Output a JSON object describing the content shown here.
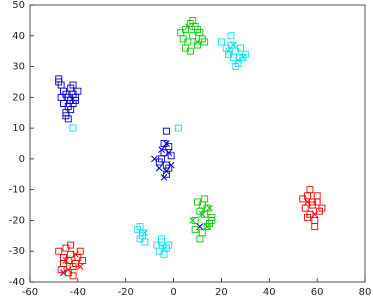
{
  "chart_data": {
    "type": "scatter",
    "xlim": [
      -60,
      80
    ],
    "xticks": [
      -60,
      -40,
      -20,
      0,
      20,
      40,
      60,
      80
    ],
    "ylim": [
      -40,
      50
    ],
    "yticks": [
      -40,
      -30,
      -20,
      -10,
      0,
      10,
      20,
      30,
      40,
      50
    ],
    "grid": false,
    "series": [
      {
        "color": "#0000cc",
        "marker": "square",
        "x": [
          -48,
          -47,
          -46,
          -45,
          -44,
          -43,
          -42,
          -41,
          -40,
          -44,
          -46,
          -45,
          -43,
          -42,
          -47,
          -45,
          -44,
          -41,
          -43,
          -42,
          -48,
          -4,
          -5,
          -3,
          -2,
          -1,
          -3,
          -4,
          -2,
          -6,
          -3
        ],
        "y": [
          25,
          24,
          22,
          21,
          20,
          19,
          21,
          20,
          22,
          17,
          18,
          15,
          23,
          18,
          20,
          14,
          13,
          19,
          16,
          24,
          26,
          2,
          0,
          -2,
          4,
          1,
          -5,
          5,
          -3,
          -1,
          9
        ]
      },
      {
        "color": "#0000cc",
        "marker": "x",
        "x": [
          -8,
          -5,
          -3,
          -1,
          -4,
          -2,
          -6,
          -3,
          -46,
          11
        ],
        "y": [
          0,
          3,
          -4,
          -2,
          -6,
          2,
          -3,
          5,
          -37,
          -22
        ]
      },
      {
        "color": "#ff0000",
        "marker": "square",
        "x": [
          -48,
          -46,
          -45,
          -44,
          -43,
          -42,
          -41,
          -40,
          -39,
          -47,
          -44,
          -42,
          -46,
          -43,
          -38,
          54,
          55,
          56,
          57,
          58,
          59,
          60,
          61,
          62,
          57,
          59,
          56,
          60,
          58
        ],
        "y": [
          -30,
          -32,
          -29,
          -33,
          -31,
          -35,
          -34,
          -32,
          -30,
          -36,
          -37,
          -38,
          -34,
          -28,
          -33,
          -13,
          -16,
          -12,
          -18,
          -15,
          -20,
          -14,
          -17,
          -16,
          -10,
          -22,
          -19,
          -12,
          -14
        ]
      },
      {
        "color": "#ff0000",
        "marker": "x",
        "x": [
          -44,
          -41,
          -45,
          -39,
          59,
          56
        ],
        "y": [
          -36,
          -31,
          -33,
          -35,
          -18,
          -14
        ]
      },
      {
        "color": "#00cc00",
        "marker": "square",
        "x": [
          3,
          4,
          5,
          6,
          7,
          8,
          9,
          10,
          11,
          12,
          13,
          5,
          8,
          10,
          7,
          9,
          11,
          14,
          16,
          10,
          12,
          13,
          14,
          15,
          11,
          13,
          9,
          16,
          12
        ],
        "y": [
          41,
          39,
          42,
          38,
          44,
          40,
          43,
          37,
          41,
          39,
          38,
          36,
          45,
          42,
          35,
          -20,
          -17,
          -22,
          -19,
          -14,
          -24,
          -18,
          -16,
          -21,
          -26,
          -13,
          -23,
          -20,
          -15
        ]
      },
      {
        "color": "#00cc00",
        "marker": "x",
        "x": [
          6,
          10,
          12,
          14,
          8,
          15
        ],
        "y": [
          43,
          38,
          -18,
          -22,
          -20,
          -16
        ]
      },
      {
        "color": "#00e5ee",
        "marker": "square",
        "x": [
          20,
          22,
          23,
          24,
          25,
          26,
          27,
          28,
          29,
          30,
          24,
          26,
          -15,
          -14,
          -13,
          -12,
          -14,
          -13,
          -7,
          -6,
          -5,
          -4,
          -3,
          -2,
          -5,
          -42,
          2
        ],
        "y": [
          38,
          36,
          34,
          37,
          33,
          35,
          31,
          36,
          33,
          34,
          40,
          30,
          -23,
          -26,
          -24,
          -27,
          -22,
          -25,
          -28,
          -30,
          -27,
          -31,
          -29,
          -28,
          -26,
          10,
          10
        ]
      },
      {
        "color": "#00e5ee",
        "marker": "x",
        "x": [
          23,
          27,
          25,
          29,
          -12,
          -4
        ],
        "y": [
          35,
          32,
          37,
          33,
          -24,
          -29
        ]
      }
    ]
  }
}
